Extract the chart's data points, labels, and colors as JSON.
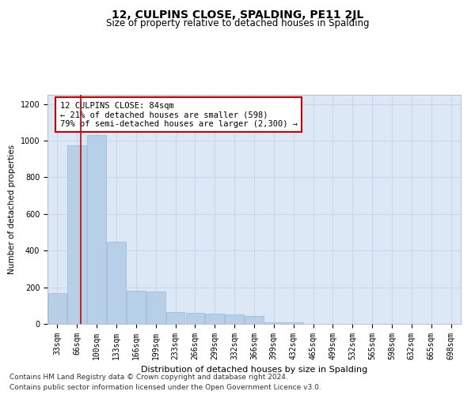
{
  "title": "12, CULPINS CLOSE, SPALDING, PE11 2JL",
  "subtitle": "Size of property relative to detached houses in Spalding",
  "xlabel": "Distribution of detached houses by size in Spalding",
  "ylabel": "Number of detached properties",
  "footer1": "Contains HM Land Registry data © Crown copyright and database right 2024.",
  "footer2": "Contains public sector information licensed under the Open Government Licence v3.0.",
  "categories": [
    "33sqm",
    "66sqm",
    "100sqm",
    "133sqm",
    "166sqm",
    "199sqm",
    "233sqm",
    "266sqm",
    "299sqm",
    "332sqm",
    "366sqm",
    "399sqm",
    "432sqm",
    "465sqm",
    "499sqm",
    "532sqm",
    "565sqm",
    "598sqm",
    "632sqm",
    "665sqm",
    "698sqm"
  ],
  "values": [
    170,
    975,
    1030,
    450,
    180,
    175,
    65,
    60,
    55,
    50,
    45,
    10,
    10,
    0,
    0,
    0,
    0,
    0,
    0,
    0,
    0
  ],
  "bar_color": "#b8cfe8",
  "bar_edge_color": "#9ab8d8",
  "grid_color": "#c8d4e8",
  "background_color": "#dce8f5",
  "annotation_text": "12 CULPINS CLOSE: 84sqm\n← 21% of detached houses are smaller (598)\n79% of semi-detached houses are larger (2,300) →",
  "vline_x": 1.18,
  "vline_color": "#cc0000",
  "annotation_box_facecolor": "#ffffff",
  "annotation_box_edgecolor": "#cc0000",
  "ylim": [
    0,
    1250
  ],
  "yticks": [
    0,
    200,
    400,
    600,
    800,
    1000,
    1200
  ],
  "title_fontsize": 10,
  "subtitle_fontsize": 8.5,
  "xlabel_fontsize": 8,
  "ylabel_fontsize": 7.5,
  "tick_fontsize": 7,
  "annotation_fontsize": 7.5,
  "footer_fontsize": 6.5
}
